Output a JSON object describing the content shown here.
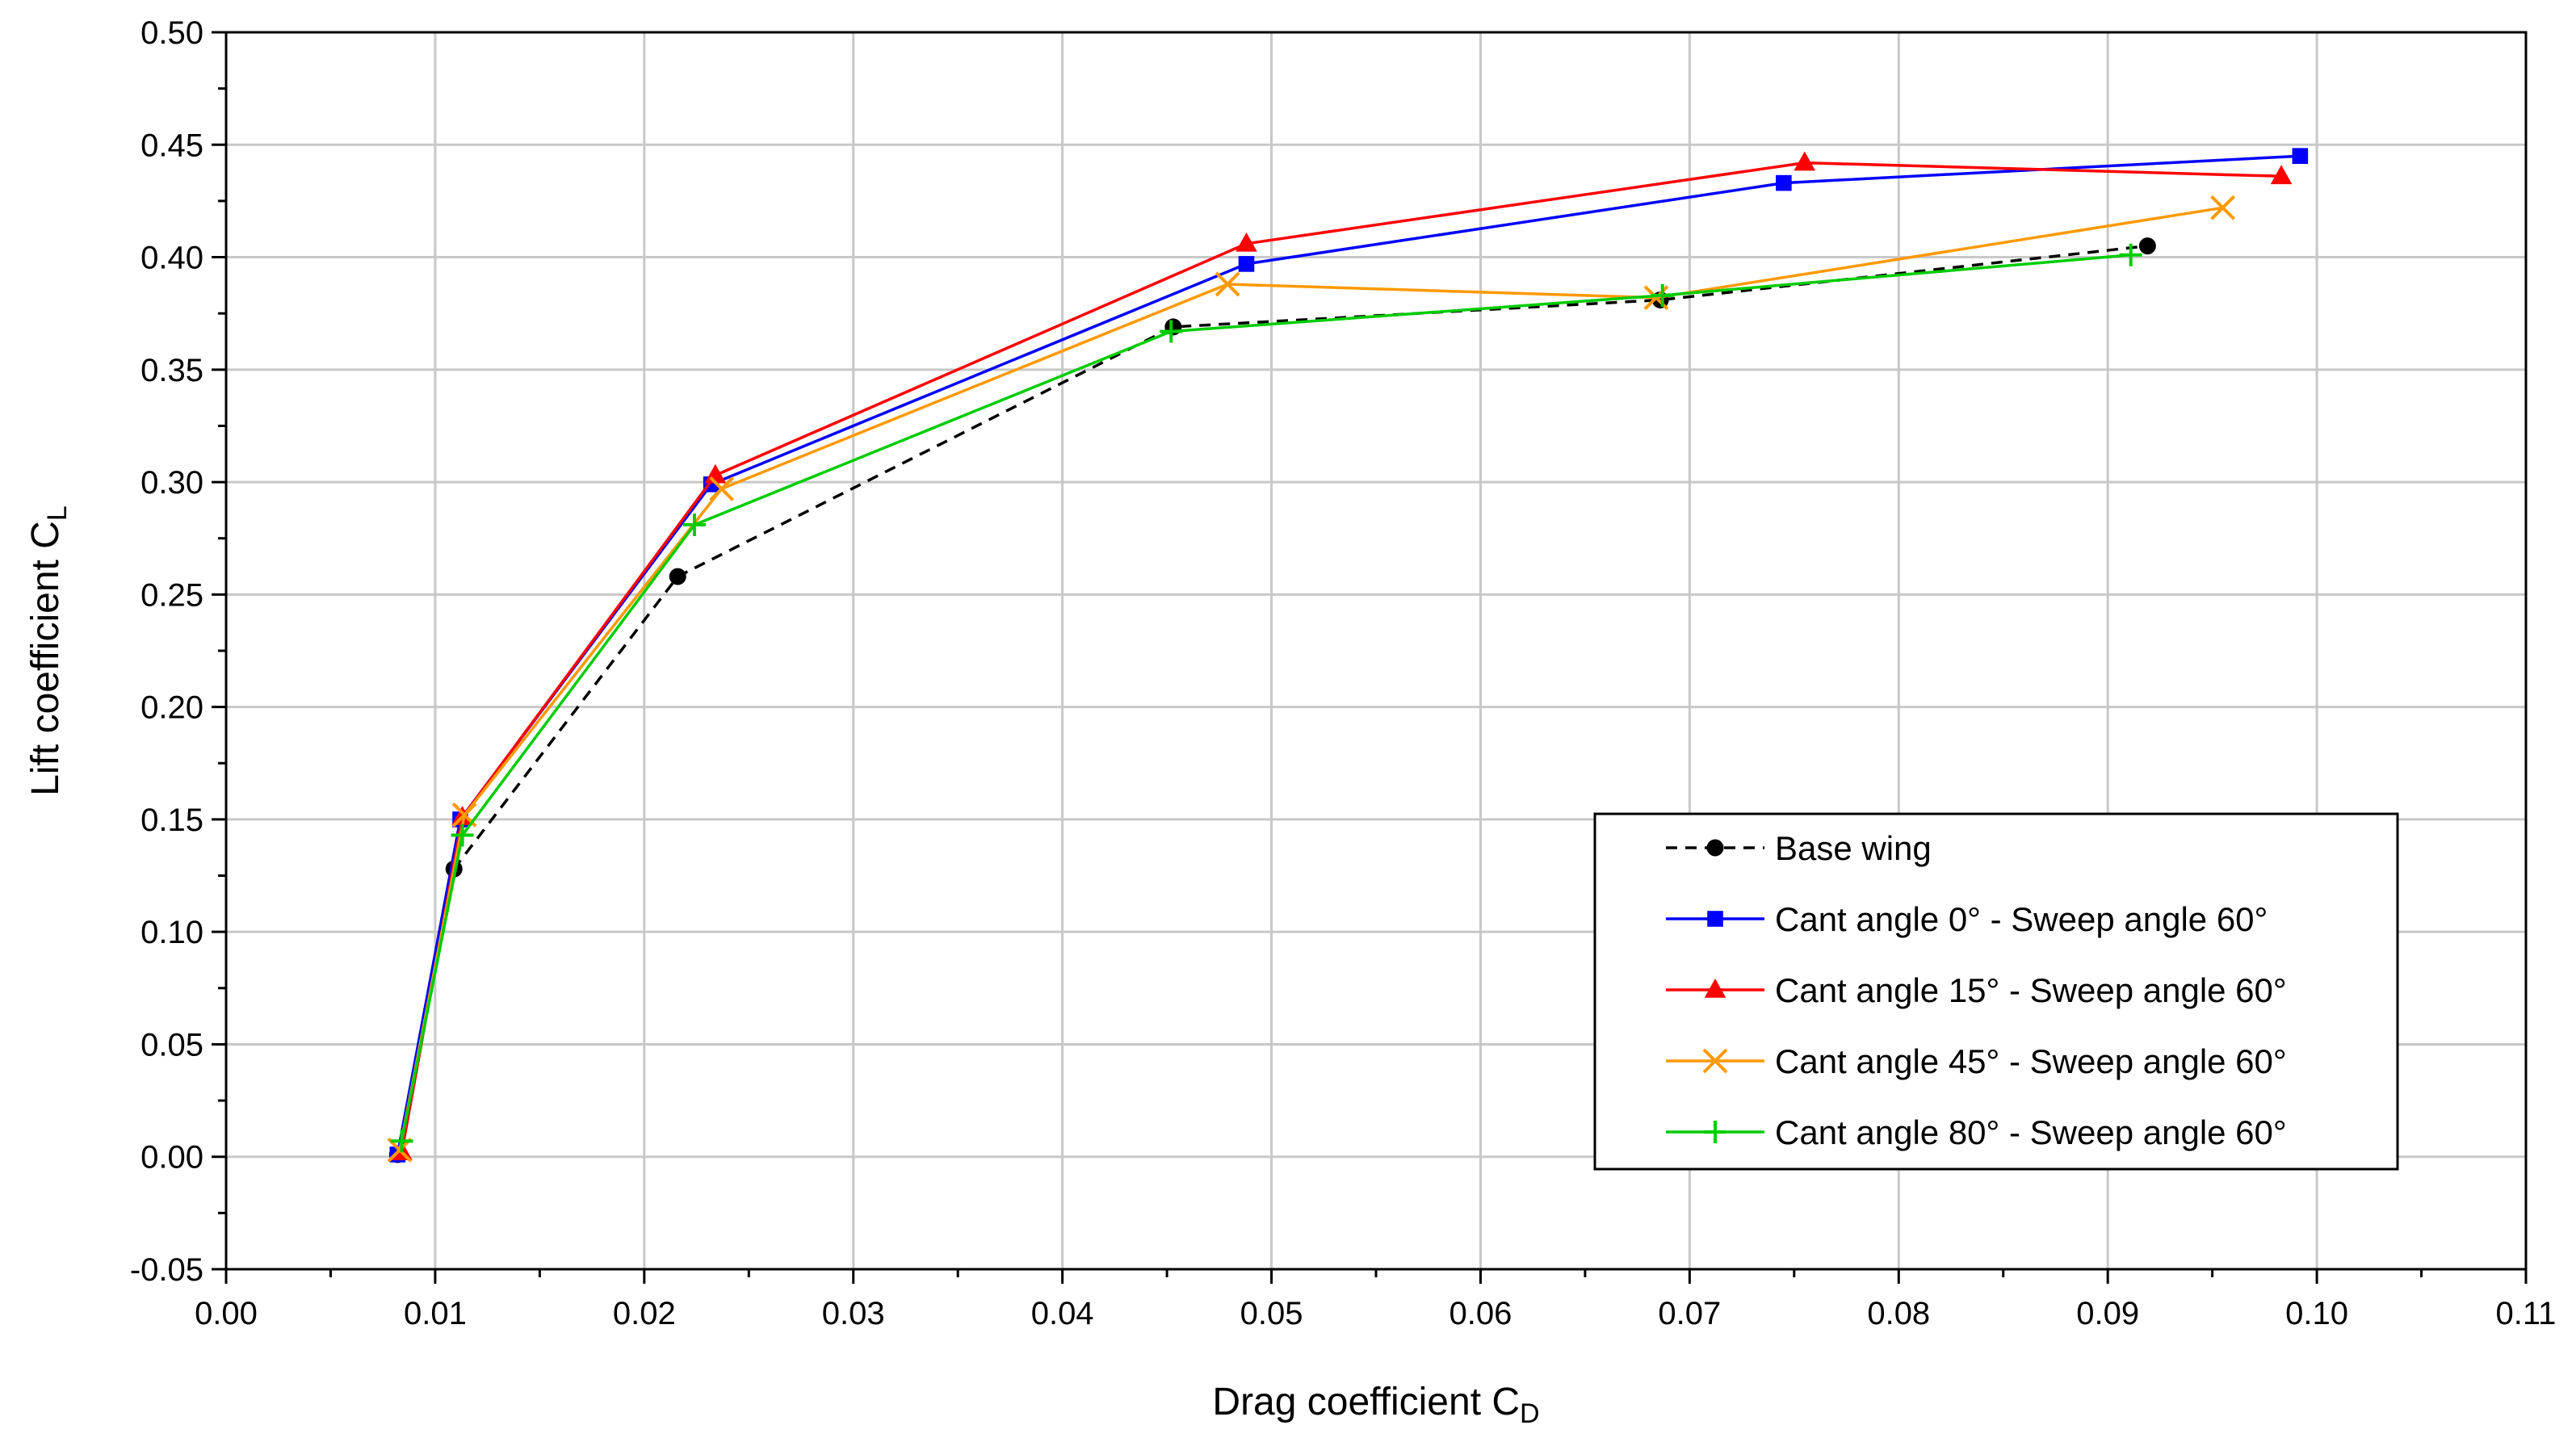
{
  "chart_data": {
    "type": "line",
    "title": "",
    "xlabel": {
      "main": "Drag coefficient C",
      "sub": "D"
    },
    "ylabel": {
      "main": "Lift coefficient C",
      "sub": "L"
    },
    "xlim": [
      0.0,
      0.11
    ],
    "ylim": [
      -0.05,
      0.5
    ],
    "x_ticks": [
      "0.00",
      "0.01",
      "0.02",
      "0.03",
      "0.04",
      "0.05",
      "0.06",
      "0.07",
      "0.08",
      "0.09",
      "0.10",
      "0.11"
    ],
    "y_ticks": [
      "-0.05",
      "0.00",
      "0.05",
      "0.10",
      "0.15",
      "0.20",
      "0.25",
      "0.30",
      "0.35",
      "0.40",
      "0.45",
      "0.50"
    ],
    "grid": true,
    "legend_position": "lower-right",
    "series": [
      {
        "name": "Base wing",
        "color": "#000000",
        "marker": "circle",
        "dashed": true,
        "x": [
          0.0082,
          0.0109,
          0.0216,
          0.0453,
          0.0686,
          0.0919
        ],
        "y": [
          0.001,
          0.128,
          0.258,
          0.369,
          0.381,
          0.405
        ]
      },
      {
        "name": "Cant angle 0° - Sweep angle 60°",
        "color": "#0000ff",
        "marker": "square",
        "dashed": false,
        "x": [
          0.0082,
          0.0112,
          0.0232,
          0.0488,
          0.0745,
          0.0992
        ],
        "y": [
          0.001,
          0.15,
          0.299,
          0.397,
          0.433,
          0.445
        ]
      },
      {
        "name": "Cant angle 15° - Sweep angle 60°",
        "color": "#ff0000",
        "marker": "triangle",
        "dashed": false,
        "x": [
          0.0084,
          0.0113,
          0.0234,
          0.0488,
          0.0755,
          0.0983
        ],
        "y": [
          0.002,
          0.151,
          0.303,
          0.406,
          0.442,
          0.436
        ]
      },
      {
        "name": "Cant angle 45° - Sweep angle 60°",
        "color": "#ff9900",
        "marker": "x",
        "dashed": false,
        "x": [
          0.0083,
          0.0114,
          0.0237,
          0.0479,
          0.0684,
          0.0955
        ],
        "y": [
          0.003,
          0.152,
          0.297,
          0.388,
          0.382,
          0.422
        ]
      },
      {
        "name": "Cant angle 80° - Sweep angle 60°",
        "color": "#00cc00",
        "marker": "plus",
        "dashed": false,
        "x": [
          0.0084,
          0.0113,
          0.0224,
          0.0452,
          0.0687,
          0.0911
        ],
        "y": [
          0.007,
          0.143,
          0.281,
          0.367,
          0.383,
          0.401
        ]
      }
    ]
  }
}
